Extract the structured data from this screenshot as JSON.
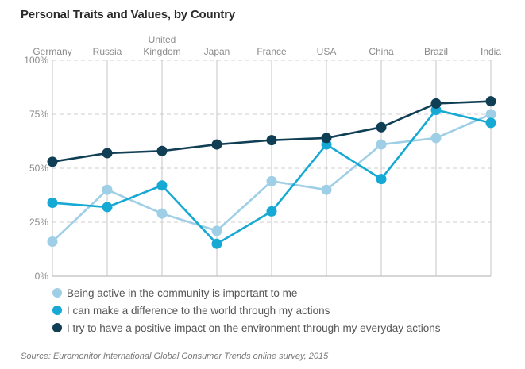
{
  "chart_data": {
    "type": "line",
    "title": "Personal Traits and Values, by Country",
    "categories": [
      "Germany",
      "Russia",
      "United Kingdom",
      "Japan",
      "France",
      "USA",
      "China",
      "Brazil",
      "India"
    ],
    "category_labels": [
      [
        "Germany"
      ],
      [
        "Russia"
      ],
      [
        "United",
        "Kingdom"
      ],
      [
        "Japan"
      ],
      [
        "France"
      ],
      [
        "USA"
      ],
      [
        "China"
      ],
      [
        "Brazil"
      ],
      [
        "India"
      ]
    ],
    "xlabel": "",
    "ylabel": "",
    "ylim": [
      0,
      100
    ],
    "yticks": [
      0,
      25,
      50,
      75,
      100
    ],
    "ytick_labels": [
      "0%",
      "25%",
      "50%",
      "75%",
      "100%"
    ],
    "grid": true,
    "legend_position": "bottom",
    "series": [
      {
        "name": "Being active in the community is important to me",
        "color": "#9fcfe6",
        "values": [
          16,
          40,
          29,
          21,
          44,
          40,
          61,
          64,
          75
        ]
      },
      {
        "name": "I can make a difference to the world through my actions",
        "color": "#16a9d3",
        "values": [
          34,
          32,
          42,
          15,
          30,
          61,
          45,
          77,
          71
        ]
      },
      {
        "name": "I try to have a positive impact on the environment through my everyday actions",
        "color": "#0f3e55",
        "values": [
          53,
          57,
          58,
          61,
          63,
          64,
          69,
          80,
          81
        ]
      }
    ],
    "source": "Source: Euromonitor International Global Consumer Trends online survey, 2015"
  }
}
